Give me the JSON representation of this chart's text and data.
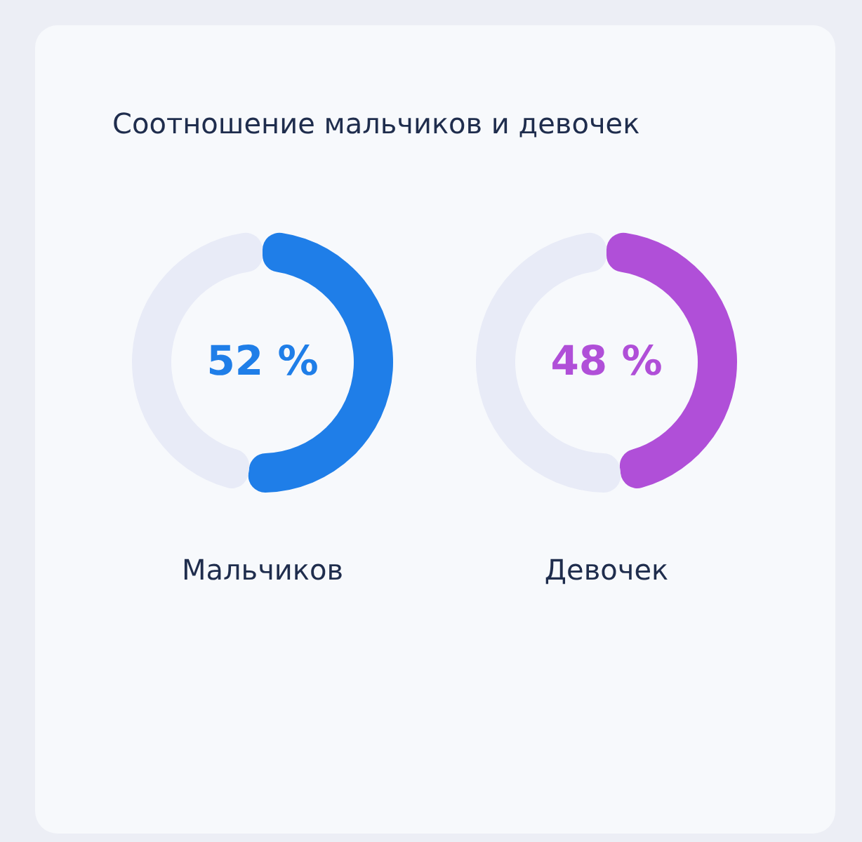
{
  "chart_data": [
    {
      "type": "donut",
      "title": "Соотношение мальчиков и девочек",
      "categories": [
        "Мальчиков",
        null
      ],
      "values": [
        52,
        48
      ],
      "colors": [
        "#1f7ee8",
        "#e8ebf7"
      ],
      "value_labels": [
        "52 %",
        null
      ]
    },
    {
      "type": "donut",
      "categories": [
        "Девочек",
        null
      ],
      "values": [
        48,
        52
      ],
      "colors": [
        "#b04fd8",
        "#e8ebf7"
      ],
      "value_labels": [
        "48 %",
        null
      ]
    }
  ]
}
